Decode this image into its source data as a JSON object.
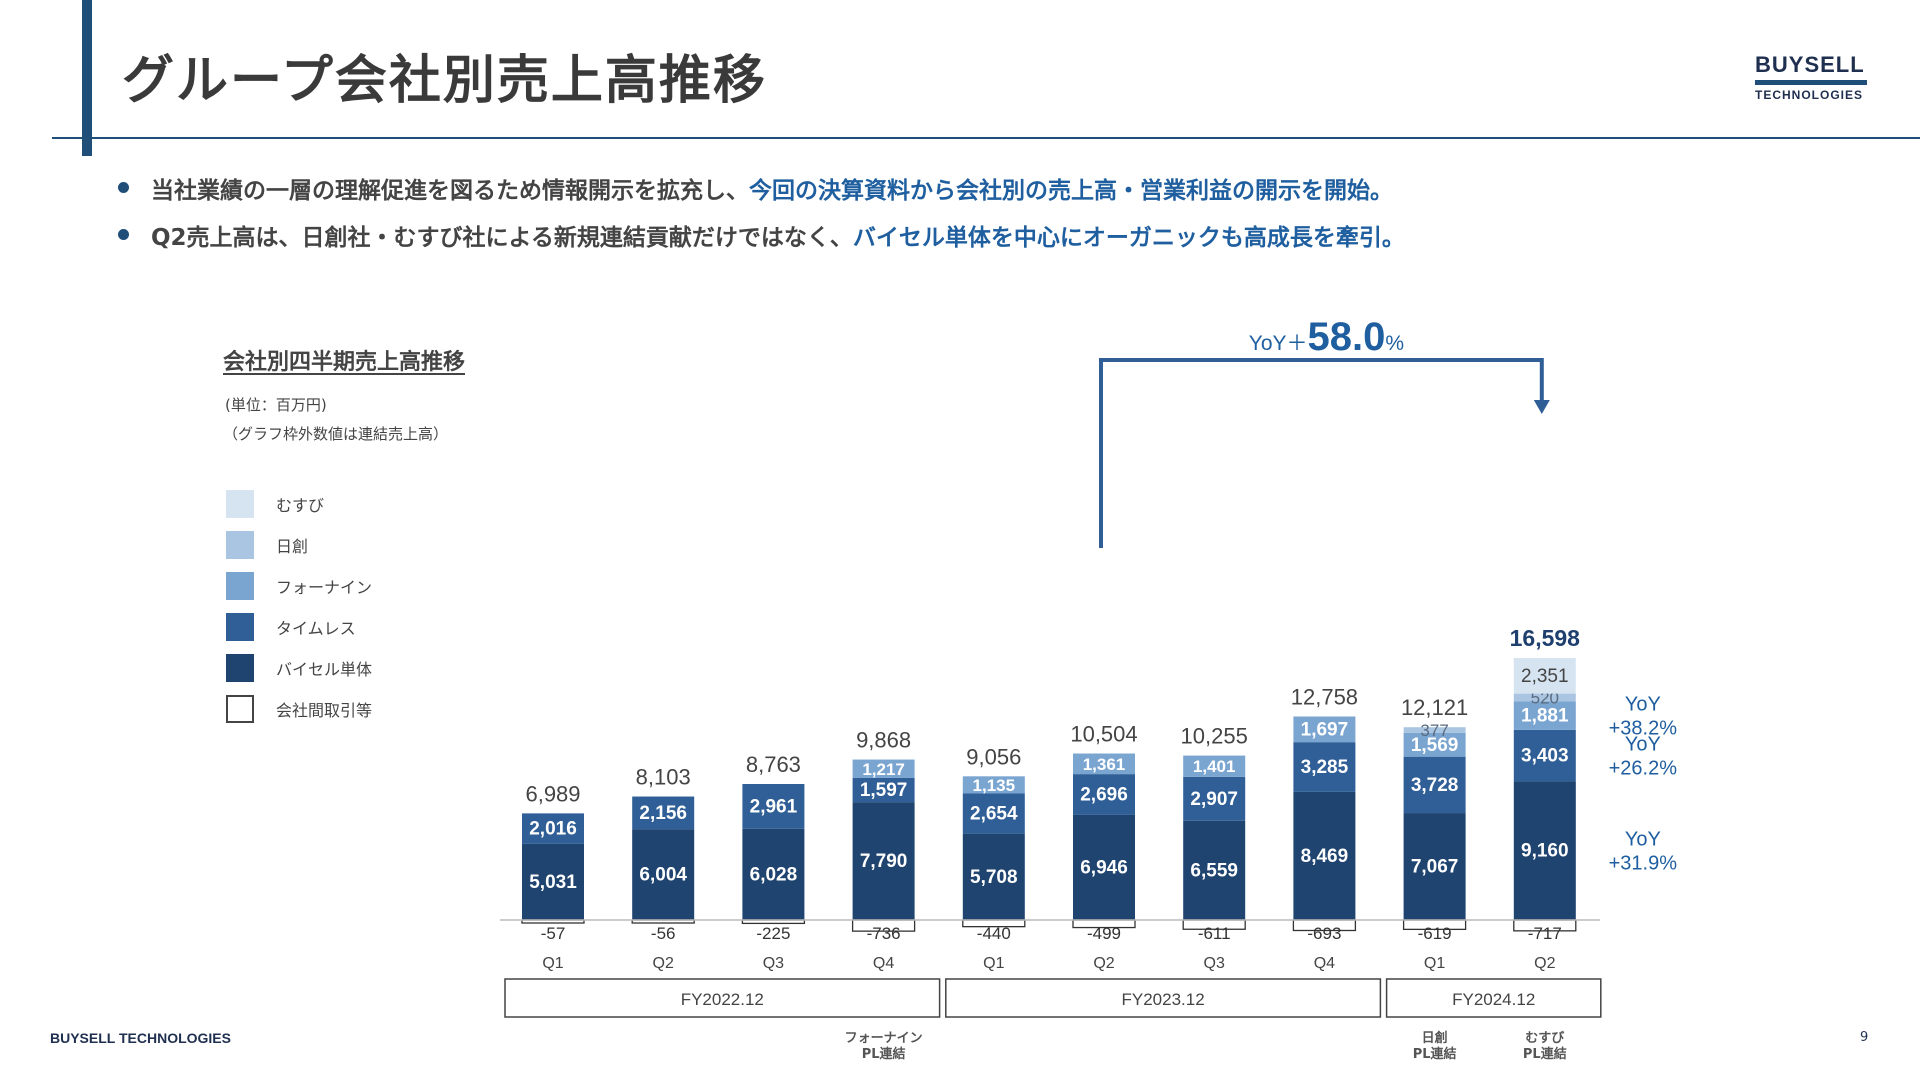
{
  "header": {
    "title": "グループ会社別売上高推移",
    "logo_line1": "BUYSELL",
    "logo_line2": "TECHNOLOGIES"
  },
  "bullets": [
    {
      "text": "当社業績の一層の理解促進を図るため情報開示を拡充し、",
      "highlight": "今回の決算資料から会社別の売上高・営業利益の開示を開始。"
    },
    {
      "text": "Q2売上高は、日創社・むすび社による新規連結貢献だけではなく、",
      "highlight": "バイセル単体を中心にオーガニックも高成長を牽引。"
    }
  ],
  "chart_header": {
    "title": "会社別四半期売上高推移",
    "unit": "(単位：百万円)",
    "note": "（グラフ枠外数値は連結売上高）"
  },
  "legend": [
    {
      "name": "むすび",
      "color": "#d6e4f1"
    },
    {
      "name": "日創",
      "color": "#a9c5e1"
    },
    {
      "name": "フォーナイン",
      "color": "#7ba5d1"
    },
    {
      "name": "タイムレス",
      "color": "#2f5f96"
    },
    {
      "name": "バイセル単体",
      "color": "#1f4470"
    },
    {
      "name": "会社間取引等",
      "color": "#ffffff"
    }
  ],
  "chart_data": {
    "type": "bar",
    "stacked": true,
    "title": "会社別四半期売上高推移",
    "ylabel": "百万円",
    "categories": [
      "Q1",
      "Q2",
      "Q3",
      "Q4",
      "Q1",
      "Q2",
      "Q3",
      "Q4",
      "Q1",
      "Q2"
    ],
    "fiscal_years": [
      {
        "label": "FY2022.12",
        "start": 0,
        "end": 3
      },
      {
        "label": "FY2023.12",
        "start": 4,
        "end": 7
      },
      {
        "label": "FY2024.12",
        "start": 8,
        "end": 9
      }
    ],
    "series": [
      {
        "name": "バイセル単体",
        "color": "#1f4470",
        "values": [
          5031,
          6004,
          6028,
          7790,
          5708,
          6946,
          6559,
          8469,
          7067,
          9160
        ]
      },
      {
        "name": "タイムレス",
        "color": "#2f5f96",
        "values": [
          2016,
          2156,
          2961,
          1597,
          2654,
          2696,
          2907,
          3285,
          3728,
          3403
        ]
      },
      {
        "name": "フォーナイン",
        "color": "#7ba5d1",
        "values": [
          null,
          null,
          null,
          1217,
          1135,
          1361,
          1401,
          1697,
          1569,
          1881
        ]
      },
      {
        "name": "日創",
        "color": "#a9c5e1",
        "values": [
          null,
          null,
          null,
          null,
          null,
          null,
          null,
          null,
          377,
          520
        ]
      },
      {
        "name": "むすび",
        "color": "#d6e4f1",
        "values": [
          null,
          null,
          null,
          null,
          null,
          null,
          null,
          null,
          null,
          2351
        ]
      },
      {
        "name": "会社間取引等",
        "color": "#ffffff",
        "values": [
          -57,
          -56,
          -225,
          -736,
          -440,
          -499,
          -611,
          -693,
          -619,
          -717
        ]
      }
    ],
    "totals": [
      "6,989",
      "8,103",
      "8,763",
      "9,868",
      "9,056",
      "10,504",
      "10,255",
      "12,758",
      "12,121",
      "16,598"
    ],
    "yoy_total": {
      "prefix": "YoY＋",
      "value": "58.0",
      "suffix": "%",
      "from_index": 5,
      "to_index": 9
    },
    "yoy_side": [
      {
        "series": "フォーナイン",
        "line1": "YoY",
        "line2": "+38.2%"
      },
      {
        "series": "タイムレス",
        "line1": "YoY",
        "line2": "+26.2%"
      },
      {
        "series": "バイセル単体",
        "line1": "YoY",
        "line2": "+31.9%"
      }
    ],
    "ylim": [
      -800,
      17500
    ]
  },
  "footnotes": [
    {
      "line1": "フォーナイン",
      "line2": "PL連結",
      "index": 3
    },
    {
      "line1": "日創",
      "line2": "PL連結",
      "index": 8
    },
    {
      "line1": "むすび",
      "line2": "PL連結",
      "index": 9
    }
  ],
  "footer": {
    "company": "BUYSELL TECHNOLOGIES",
    "page": "9"
  }
}
